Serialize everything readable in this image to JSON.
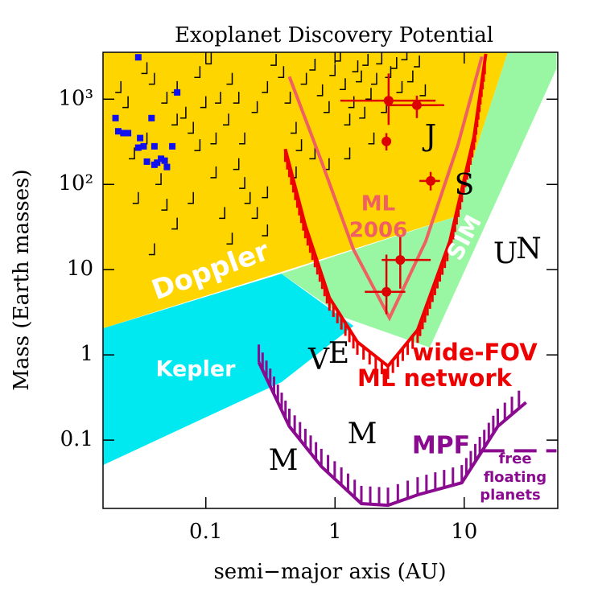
{
  "chart_data": {
    "type": "scatter",
    "title": "Exoplanet Discovery Potential",
    "xlabel": "semi−major axis (AU)",
    "ylabel": "Mass (Earth masses)",
    "log_x": true,
    "log_y": true,
    "xlim": [
      0.016,
      53
    ],
    "ylim": [
      0.0158,
      3550
    ],
    "xticks": [
      0.1,
      1,
      10
    ],
    "yticks": [
      0.1,
      1,
      10,
      {
        "value": 100,
        "label": "10²"
      },
      {
        "value": 1000,
        "label": "10³"
      }
    ],
    "regions": [
      {
        "name": "Doppler",
        "color": "#ffd500",
        "x": [
          0.016,
          21.7,
          8.29,
          0.016
        ],
        "y": [
          3500,
          3500,
          41.1,
          2.05
        ]
      },
      {
        "name": "SIM",
        "color": "#99f7a4",
        "x": [
          0.384,
          8.29,
          21.7,
          51.8,
          51.8,
          5.41,
          1.2
        ],
        "y": [
          8.97,
          41.1,
          3500,
          3500,
          2280,
          1.22,
          2.72
        ]
      },
      {
        "name": "Kepler",
        "color": "#00e9f0",
        "x": [
          0.016,
          0.384,
          1.39,
          0.384,
          0.016
        ],
        "y": [
          2.05,
          8.97,
          2.19,
          0.478,
          0.051
        ]
      }
    ],
    "known_planets": {
      "color": "#000000",
      "x": [
        0.035,
        0.04,
        0.05,
        0.06,
        0.07,
        0.08,
        0.09,
        0.1,
        0.12,
        0.15,
        0.18,
        0.2,
        0.22,
        0.25,
        0.3,
        0.035,
        0.045,
        0.05,
        0.06,
        0.04,
        0.08,
        0.12,
        0.14,
        0.16,
        0.2,
        0.25,
        0.3,
        0.35,
        0.4,
        0.45,
        0.5,
        0.55,
        0.6,
        0.7,
        0.8,
        0.9,
        1.0,
        1.1,
        1.2,
        1.3,
        1.4,
        1.5,
        1.6,
        1.7,
        1.8,
        1.9,
        2.0,
        2.1,
        2.3,
        2.5,
        2.7,
        3.0,
        3.3,
        3.6,
        4.0,
        4.5,
        5.0,
        0.03,
        0.025,
        0.028,
        0.06,
        0.09,
        0.11,
        0.13,
        0.16,
        0.5,
        0.7,
        0.9,
        1.3,
        0.3,
        0.18,
        0.022
      ],
      "y": [
        2000,
        1500,
        900,
        1200,
        600,
        400,
        250,
        800,
        300,
        500,
        150,
        90,
        60,
        40,
        25,
        300,
        100,
        50,
        30,
        15,
        60,
        120,
        40,
        20,
        300,
        700,
        1200,
        2500,
        1800,
        900,
        400,
        250,
        1500,
        2200,
        1100,
        700,
        1900,
        2800,
        1300,
        500,
        800,
        2100,
        1600,
        600,
        2500,
        1000,
        300,
        1500,
        2600,
        700,
        1800,
        2300,
        1200,
        2900,
        1600,
        2400,
        1100,
        60,
        800,
        200,
        500,
        1800,
        2600,
        900,
        1500,
        120,
        200,
        150,
        200,
        70,
        900,
        1200
      ]
    },
    "transit_planets": {
      "color": "#1010ee",
      "x": [
        0.02,
        0.021,
        0.023,
        0.025,
        0.03,
        0.031,
        0.033,
        0.038,
        0.04,
        0.042,
        0.045,
        0.048,
        0.05,
        0.055,
        0.06,
        0.03,
        0.04,
        0.035
      ],
      "y": [
        600,
        420,
        400,
        400,
        3100,
        350,
        280,
        600,
        280,
        180,
        200,
        190,
        160,
        280,
        1200,
        270,
        170,
        185
      ]
    },
    "microlensing_planets": {
      "color": "#dd0000",
      "x": [
        2.6,
        4.3,
        2.5,
        5.5,
        3.2,
        2.5
      ],
      "y": [
        960,
        850,
        320,
        110,
        13,
        5.5
      ],
      "x_range": [
        [
          1.1,
          6
        ],
        [
          2.5,
          7
        ],
        [
          2.3,
          2.7
        ],
        [
          4.5,
          6.5
        ],
        [
          2.3,
          5.5
        ],
        [
          1.7,
          3.5
        ]
      ],
      "y_range": [
        [
          500,
          2000
        ],
        [
          600,
          1100
        ],
        [
          250,
          400
        ],
        [
          85,
          140
        ],
        [
          6,
          25
        ],
        [
          3,
          15
        ]
      ]
    },
    "curves": [
      {
        "label": [
          "ML",
          "2006"
        ],
        "color": "#f06060",
        "x": [
          0.443,
          0.784,
          1.39,
          2.64,
          5.03,
          8.94,
          13.7
        ],
        "y": [
          1840,
          188,
          17.2,
          2.72,
          21.4,
          290,
          3160
        ]
      },
      {
        "label": [
          "wide-FOV",
          "ML network"
        ],
        "color": "#ee0000",
        "x": [
          0.412,
          0.589,
          0.905,
          1.49,
          2.57,
          4.36,
          7.73,
          11.9,
          14.7
        ],
        "y": [
          260,
          33,
          4.67,
          1.42,
          0.738,
          1.96,
          21.4,
          360,
          3400
        ]
      },
      {
        "label": [
          "MPF"
        ],
        "color": "#8a0a90",
        "x": [
          0.257,
          0.443,
          0.784,
          1.6,
          2.57,
          4.36,
          9.58,
          18.2,
          30.1
        ],
        "y": [
          0.82,
          0.145,
          0.049,
          0.018,
          0.0172,
          0.0228,
          0.0316,
          0.145,
          0.277
        ]
      },
      {
        "label": [
          "free",
          "floating",
          "planets"
        ],
        "color": "#8a0a90",
        "dashed": true,
        "x": [
          13.7,
          51.8
        ],
        "y": [
          0.075,
          0.075
        ]
      }
    ],
    "planet_labels": [
      "J",
      "S",
      "U",
      "N",
      "V",
      "E",
      "M",
      "M"
    ]
  }
}
